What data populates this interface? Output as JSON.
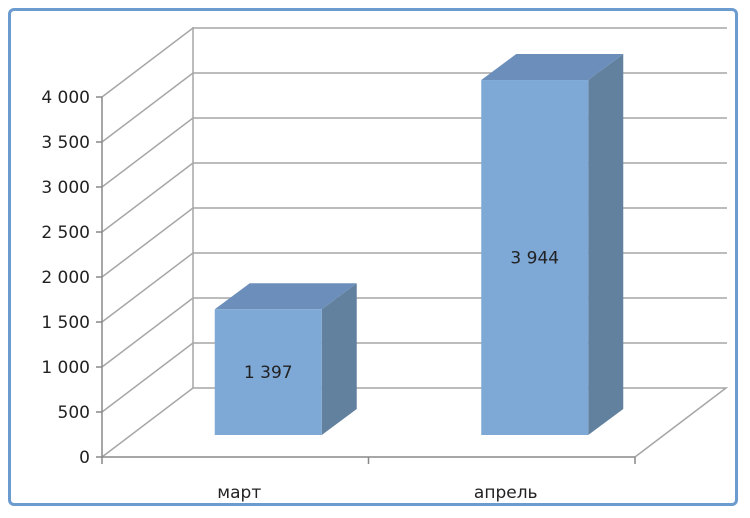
{
  "chart_data": {
    "type": "bar",
    "categories": [
      "март",
      "апрель"
    ],
    "values": [
      1397,
      3944
    ],
    "data_labels": [
      "1 397",
      "3 944"
    ],
    "ylim": [
      0,
      4000
    ],
    "yticks": [
      0,
      500,
      1000,
      1500,
      2000,
      2500,
      3000,
      3500,
      4000
    ],
    "ytick_labels": [
      "0",
      "500",
      "1 000",
      "1 500",
      "2 000",
      "2 500",
      "3 000",
      "3 500",
      "4 000"
    ],
    "grid": true,
    "three_d": true,
    "legend": "none",
    "colors": {
      "front": "#7ea8d6",
      "side": "#62819f",
      "top": "#6b8fba",
      "grid": "#a6a6a6",
      "border": "#6c9bd0"
    }
  }
}
